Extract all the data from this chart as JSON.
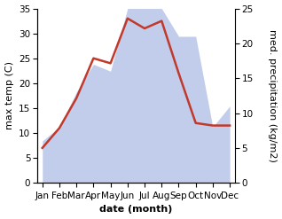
{
  "months": [
    "Jan",
    "Feb",
    "Mar",
    "Apr",
    "May",
    "Jun",
    "Jul",
    "Aug",
    "Sep",
    "Oct",
    "Nov",
    "Dec"
  ],
  "temperature": [
    7,
    11,
    17,
    25,
    24,
    33,
    31,
    32.5,
    22,
    12,
    11.5,
    11.5
  ],
  "precipitation": [
    6,
    8,
    13,
    17,
    16,
    25,
    25,
    25,
    21,
    21,
    8,
    11
  ],
  "temp_color": "#c0392b",
  "precip_fill_color": "#b8c4e8",
  "temp_ylim": [
    0,
    35
  ],
  "precip_ylim": [
    0,
    25
  ],
  "temp_yticks": [
    0,
    5,
    10,
    15,
    20,
    25,
    30,
    35
  ],
  "precip_yticks": [
    0,
    5,
    10,
    15,
    20,
    25
  ],
  "xlabel": "date (month)",
  "ylabel_left": "max temp (C)",
  "ylabel_right": "med. precipitation (kg/m2)",
  "label_fontsize": 8,
  "tick_fontsize": 7.5
}
